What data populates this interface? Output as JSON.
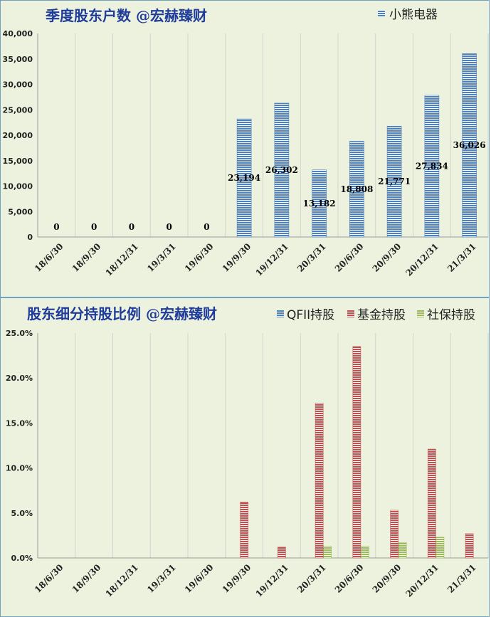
{
  "chart_data": [
    {
      "type": "bar",
      "title": "季度股东户数 @宏赫臻财",
      "categories": [
        "18/6/30",
        "18/9/30",
        "18/12/31",
        "19/3/31",
        "19/6/30",
        "19/9/30",
        "19/12/31",
        "20/3/31",
        "20/6/30",
        "20/9/30",
        "20/12/31",
        "21/3/31"
      ],
      "series": [
        {
          "name": "小熊电器",
          "color": "#4f81bd",
          "values": [
            0,
            0,
            0,
            0,
            0,
            23194,
            26302,
            13182,
            18808,
            21771,
            27834,
            36026
          ],
          "labels": [
            "0",
            "0",
            "0",
            "0",
            "0",
            "23,194",
            "26,302",
            "13,182",
            "18,808",
            "21,771",
            "27,834",
            "36,026"
          ]
        }
      ],
      "ylim": [
        0,
        40000
      ],
      "yticks": [
        "0",
        "5,000",
        "10,000",
        "15,000",
        "20,000",
        "25,000",
        "30,000",
        "35,000",
        "40,000"
      ],
      "legend": "top-right",
      "grid": "vertical"
    },
    {
      "type": "bar",
      "title": "股东细分持股比例 @宏赫臻财",
      "categories": [
        "18/6/30",
        "18/9/30",
        "18/12/31",
        "19/3/31",
        "19/6/30",
        "19/9/30",
        "19/12/31",
        "20/3/31",
        "20/6/30",
        "20/9/30",
        "20/12/31",
        "21/3/31"
      ],
      "series": [
        {
          "name": "QFII持股",
          "color": "#4f81bd",
          "values": [
            0,
            0,
            0,
            0,
            0,
            0,
            0,
            0,
            0,
            0,
            0,
            0
          ]
        },
        {
          "name": "基金持股",
          "color": "#c0504d",
          "values": [
            0,
            0,
            0,
            0,
            0,
            6.2,
            1.2,
            17.2,
            23.5,
            5.3,
            12.1,
            2.7
          ]
        },
        {
          "name": "社保持股",
          "color": "#9bbb59",
          "values": [
            0,
            0,
            0,
            0,
            0,
            0,
            0,
            1.3,
            1.3,
            1.7,
            2.3,
            0
          ]
        }
      ],
      "ylim": [
        0,
        25
      ],
      "yticks": [
        "0.0%",
        "5.0%",
        "10.0%",
        "15.0%",
        "20.0%",
        "25.0%"
      ],
      "legend": "top-right",
      "grid": "vertical"
    }
  ]
}
